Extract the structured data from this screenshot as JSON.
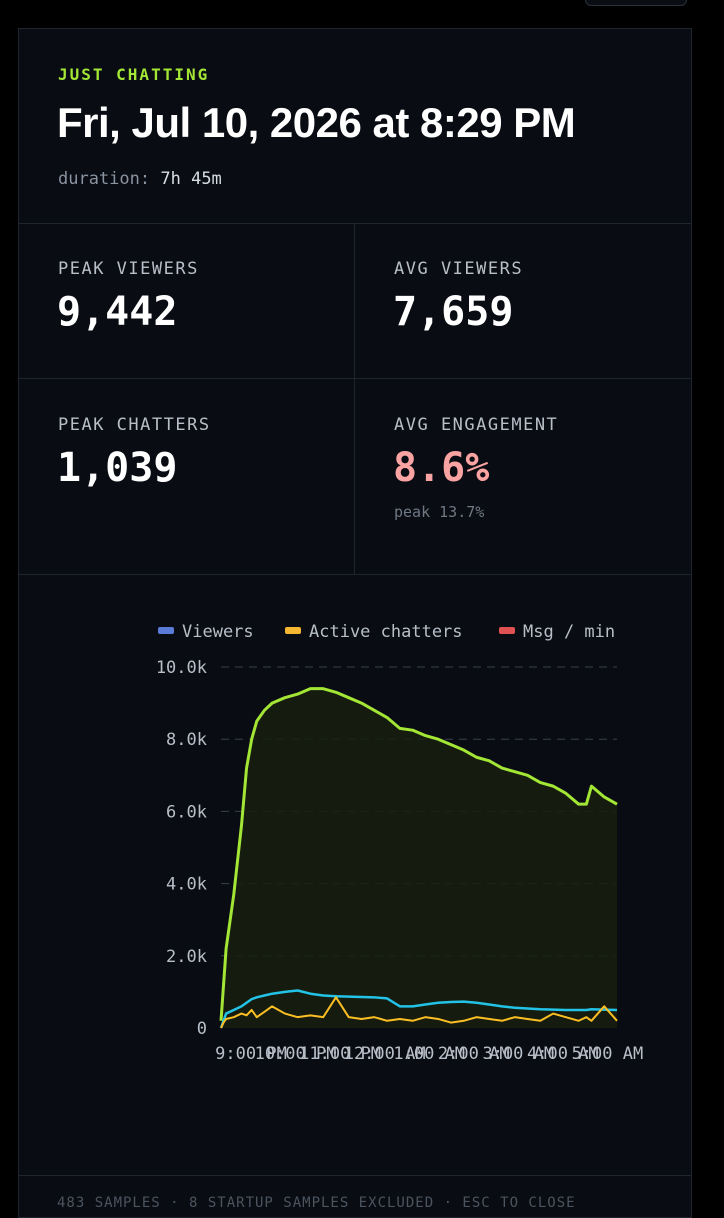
{
  "header": {
    "category": "JUST CHATTING",
    "title": "Fri, Jul 10, 2026 at 8:29 PM",
    "duration_label": "duration:",
    "duration_value": "7h 45m"
  },
  "stats": {
    "peak_viewers": {
      "label": "PEAK VIEWERS",
      "value": "9,442"
    },
    "avg_viewers": {
      "label": "AVG VIEWERS",
      "value": "7,659"
    },
    "peak_chatters": {
      "label": "PEAK CHATTERS",
      "value": "1,039"
    },
    "avg_engagement": {
      "label": "AVG ENGAGEMENT",
      "value": "8.6%",
      "sub": "peak 13.7%"
    }
  },
  "colors": {
    "viewers_line": "#a3e635",
    "chatters_line": "#22c3e6",
    "msg_line": "#fbbf24",
    "legend_viewers": "#5b7bd8",
    "legend_chatters": "#f5b731",
    "legend_msg": "#e05252",
    "engagement_value": "#f9a3a3",
    "category": "#a3e635"
  },
  "chart_data": {
    "type": "line",
    "legend": [
      "Viewers",
      "Active chatters",
      "Msg / min"
    ],
    "ylim": [
      0,
      10000
    ],
    "yticks": [
      "0",
      "2.0k",
      "4.0k",
      "6.0k",
      "8.0k",
      "10.0k"
    ],
    "xticks": [
      "9:00 PM",
      "10:00 PM",
      "11:00 PM",
      "12:00 AM",
      "1:00 AM",
      "2:00 AM",
      "3:00 AM",
      "4:00 AM",
      "5:00 AM"
    ],
    "x_hours": [
      0,
      0.05,
      0.1,
      0.25,
      0.4,
      0.5,
      0.6,
      0.7,
      0.85,
      1.0,
      1.25,
      1.5,
      1.75,
      2.0,
      2.25,
      2.5,
      2.75,
      3.0,
      3.25,
      3.5,
      3.75,
      4.0,
      4.25,
      4.5,
      4.75,
      5.0,
      5.25,
      5.5,
      5.75,
      6.0,
      6.25,
      6.5,
      6.75,
      7.0,
      7.15,
      7.25,
      7.5,
      7.75
    ],
    "series": [
      {
        "name": "Viewers",
        "values": [
          200,
          1200,
          2200,
          3700,
          5600,
          7200,
          8000,
          8500,
          8800,
          9000,
          9150,
          9250,
          9400,
          9400,
          9300,
          9150,
          9000,
          8800,
          8600,
          8300,
          8250,
          8100,
          8000,
          7850,
          7700,
          7500,
          7400,
          7200,
          7100,
          7000,
          6800,
          6700,
          6500,
          6200,
          6200,
          6700,
          6400,
          6200
        ]
      },
      {
        "name": "Active chatters",
        "values": [
          0,
          200,
          400,
          500,
          600,
          700,
          800,
          850,
          900,
          950,
          1000,
          1039,
          950,
          900,
          880,
          870,
          860,
          850,
          820,
          600,
          600,
          650,
          700,
          720,
          730,
          700,
          650,
          600,
          560,
          540,
          520,
          510,
          500,
          500,
          500,
          520,
          510,
          500
        ]
      },
      {
        "name": "Msg / min",
        "values": [
          0,
          150,
          250,
          300,
          400,
          350,
          500,
          300,
          450,
          600,
          400,
          300,
          350,
          300,
          850,
          300,
          250,
          300,
          200,
          250,
          200,
          300,
          250,
          150,
          200,
          300,
          250,
          200,
          300,
          250,
          200,
          400,
          300,
          200,
          300,
          200,
          600,
          200
        ]
      }
    ]
  },
  "footer": "483 SAMPLES · 8 STARTUP SAMPLES EXCLUDED · ESC TO CLOSE"
}
